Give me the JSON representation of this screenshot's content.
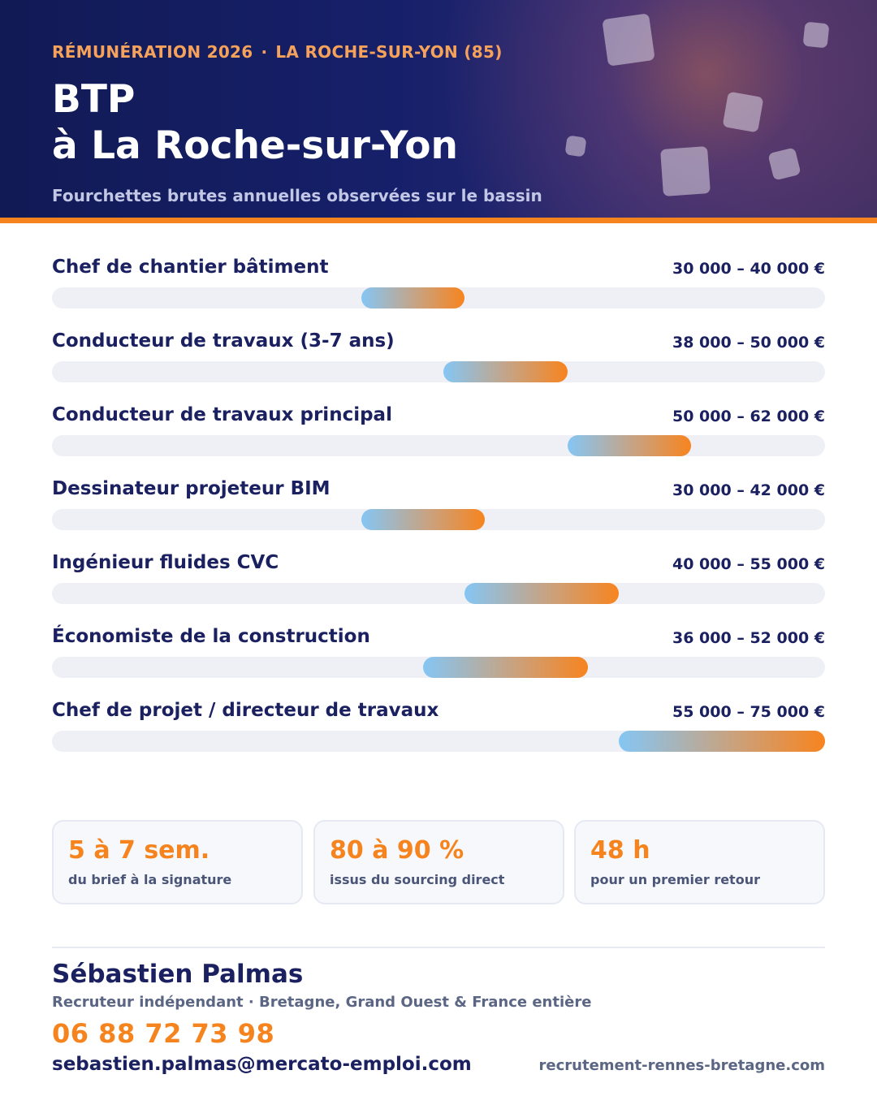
{
  "header": {
    "eyebrow_left": "RÉMUNÉRATION 2026",
    "eyebrow_sep": "·",
    "eyebrow_right": "LA ROCHE-SUR-YON (85)",
    "title_line1": "BTP",
    "title_line2": "à La Roche-sur-Yon",
    "subtitle": "Fourchettes brutes annuelles observées sur le bassin"
  },
  "colors": {
    "navy": "#1b2160",
    "accent_orange": "#f5841f",
    "bar_start": "#85c6f4",
    "bar_end": "#f7841f",
    "track": "#eef0f6"
  },
  "chart_data": {
    "type": "bar",
    "orientation": "horizontal-range",
    "title": "",
    "xlabel": "",
    "ylabel": "",
    "xlim": [
      0,
      75000
    ],
    "grid": false,
    "categories": [
      "Chef de chantier bâtiment",
      "Conducteur de travaux (3-7 ans)",
      "Conducteur de travaux principal",
      "Dessinateur projeteur BIM",
      "Ingénieur fluides CVC",
      "Économiste de la construction",
      "Chef de projet / directeur de travaux"
    ],
    "ranges": [
      [
        30000,
        40000
      ],
      [
        38000,
        50000
      ],
      [
        50000,
        62000
      ],
      [
        30000,
        42000
      ],
      [
        40000,
        55000
      ],
      [
        36000,
        52000
      ],
      [
        55000,
        75000
      ]
    ],
    "value_labels": [
      "30 000 – 40 000 €",
      "38 000 – 50 000 €",
      "50 000 – 62 000 €",
      "30 000 – 42 000 €",
      "40 000 – 55 000 €",
      "36 000 – 52 000 €",
      "55 000 – 75 000 €"
    ]
  },
  "stats": [
    {
      "value": "5 à 7 sem.",
      "label": "du brief à la signature"
    },
    {
      "value": "80 à 90 %",
      "label": "issus du sourcing direct"
    },
    {
      "value": "48 h",
      "label": "pour un premier retour"
    }
  ],
  "contact": {
    "name": "Sébastien Palmas",
    "role": "Recruteur indépendant · Bretagne, Grand Ouest & France entière",
    "phone": "06 88 72 73 98",
    "email": "sebastien.palmas@mercato-emploi.com",
    "website": "recrutement-rennes-bretagne.com"
  }
}
